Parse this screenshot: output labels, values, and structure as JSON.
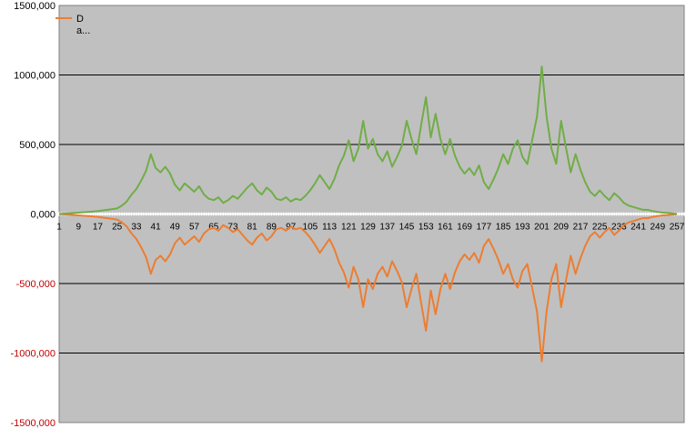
{
  "chart_data": {
    "type": "line",
    "title": "",
    "xlabel": "",
    "ylabel": "",
    "ylim": [
      -1500000,
      1500000
    ],
    "yticks": [
      {
        "value": 1500000,
        "label": "1500,000"
      },
      {
        "value": 1000000,
        "label": "1000,000"
      },
      {
        "value": 500000,
        "label": "500,000"
      },
      {
        "value": 0,
        "label": "0,000"
      },
      {
        "value": -500000,
        "label": "-500,000"
      },
      {
        "value": -1000000,
        "label": "-1000,000"
      },
      {
        "value": -1500000,
        "label": "-1500,000"
      }
    ],
    "xlim": [
      1,
      260
    ],
    "xticks": [
      "1",
      "9",
      "17",
      "25",
      "33",
      "41",
      "49",
      "57",
      "65",
      "73",
      "81",
      "89",
      "97",
      "105",
      "113",
      "121",
      "129",
      "137",
      "145",
      "153",
      "161",
      "169",
      "177",
      "185",
      "193",
      "201",
      "209",
      "217",
      "225",
      "233",
      "241",
      "249",
      "257"
    ],
    "grid": true,
    "legend": {
      "position": "top-left",
      "entries": [
        "D",
        "a..."
      ]
    },
    "colors": {
      "positive": "#70ad47",
      "negative": "#ed7d31",
      "baseline": "#ffffff",
      "plot_bg": "#c0c0c0",
      "negative_label": "#c00000"
    },
    "series": [
      {
        "name": "D",
        "x": [
          1,
          5,
          9,
          13,
          17,
          21,
          25,
          27,
          29,
          31,
          33,
          35,
          37,
          39,
          41,
          43,
          45,
          47,
          49,
          51,
          53,
          55,
          57,
          59,
          61,
          63,
          65,
          67,
          69,
          71,
          73,
          75,
          77,
          79,
          81,
          83,
          85,
          87,
          89,
          91,
          93,
          95,
          97,
          99,
          101,
          103,
          105,
          107,
          109,
          111,
          113,
          115,
          117,
          119,
          121,
          123,
          125,
          127,
          129,
          131,
          133,
          135,
          137,
          139,
          141,
          143,
          145,
          147,
          149,
          151,
          153,
          155,
          157,
          159,
          161,
          163,
          165,
          167,
          169,
          171,
          173,
          175,
          177,
          179,
          181,
          183,
          185,
          187,
          189,
          191,
          193,
          195,
          197,
          199,
          201,
          203,
          205,
          207,
          209,
          211,
          213,
          215,
          217,
          219,
          221,
          223,
          225,
          227,
          229,
          231,
          233,
          235,
          237,
          239,
          241,
          243,
          245,
          247,
          249,
          251,
          253,
          255,
          257
        ],
        "values": [
          0,
          -5000,
          -10000,
          -15000,
          -20000,
          -30000,
          -40000,
          -60000,
          -90000,
          -140000,
          -180000,
          -240000,
          -310000,
          -430000,
          -330000,
          -300000,
          -340000,
          -290000,
          -210000,
          -170000,
          -220000,
          -190000,
          -160000,
          -200000,
          -140000,
          -110000,
          -100000,
          -120000,
          -80000,
          -100000,
          -130000,
          -110000,
          -150000,
          -190000,
          -220000,
          -170000,
          -140000,
          -190000,
          -160000,
          -110000,
          -100000,
          -120000,
          -90000,
          -110000,
          -100000,
          -130000,
          -170000,
          -220000,
          -280000,
          -230000,
          -180000,
          -250000,
          -350000,
          -420000,
          -530000,
          -380000,
          -470000,
          -670000,
          -470000,
          -540000,
          -430000,
          -380000,
          -450000,
          -340000,
          -410000,
          -490000,
          -670000,
          -540000,
          -430000,
          -640000,
          -840000,
          -550000,
          -720000,
          -540000,
          -430000,
          -540000,
          -420000,
          -340000,
          -290000,
          -330000,
          -280000,
          -350000,
          -230000,
          -180000,
          -250000,
          -330000,
          -430000,
          -360000,
          -470000,
          -530000,
          -410000,
          -360000,
          -530000,
          -700000,
          -1060000,
          -700000,
          -470000,
          -360000,
          -670000,
          -480000,
          -300000,
          -430000,
          -320000,
          -230000,
          -160000,
          -130000,
          -170000,
          -130000,
          -100000,
          -150000,
          -120000,
          -80000,
          -60000,
          -50000,
          -40000,
          -30000,
          -30000,
          -20000,
          -15000,
          -10000,
          -8000,
          -5000,
          0
        ]
      },
      {
        "name": "a...",
        "x": [
          1,
          5,
          9,
          13,
          17,
          21,
          25,
          27,
          29,
          31,
          33,
          35,
          37,
          39,
          41,
          43,
          45,
          47,
          49,
          51,
          53,
          55,
          57,
          59,
          61,
          63,
          65,
          67,
          69,
          71,
          73,
          75,
          77,
          79,
          81,
          83,
          85,
          87,
          89,
          91,
          93,
          95,
          97,
          99,
          101,
          103,
          105,
          107,
          109,
          111,
          113,
          115,
          117,
          119,
          121,
          123,
          125,
          127,
          129,
          131,
          133,
          135,
          137,
          139,
          141,
          143,
          145,
          147,
          149,
          151,
          153,
          155,
          157,
          159,
          161,
          163,
          165,
          167,
          169,
          171,
          173,
          175,
          177,
          179,
          181,
          183,
          185,
          187,
          189,
          191,
          193,
          195,
          197,
          199,
          201,
          203,
          205,
          207,
          209,
          211,
          213,
          215,
          217,
          219,
          221,
          223,
          225,
          227,
          229,
          231,
          233,
          235,
          237,
          239,
          241,
          243,
          245,
          247,
          249,
          251,
          253,
          255,
          257
        ],
        "values": [
          0,
          5000,
          10000,
          15000,
          20000,
          30000,
          40000,
          60000,
          90000,
          140000,
          180000,
          240000,
          310000,
          430000,
          330000,
          300000,
          340000,
          290000,
          210000,
          170000,
          220000,
          190000,
          160000,
          200000,
          140000,
          110000,
          100000,
          120000,
          80000,
          100000,
          130000,
          110000,
          150000,
          190000,
          220000,
          170000,
          140000,
          190000,
          160000,
          110000,
          100000,
          120000,
          90000,
          110000,
          100000,
          130000,
          170000,
          220000,
          280000,
          230000,
          180000,
          250000,
          350000,
          420000,
          530000,
          380000,
          470000,
          670000,
          470000,
          540000,
          430000,
          380000,
          450000,
          340000,
          410000,
          490000,
          670000,
          540000,
          430000,
          640000,
          840000,
          550000,
          720000,
          540000,
          430000,
          540000,
          420000,
          340000,
          290000,
          330000,
          280000,
          350000,
          230000,
          180000,
          250000,
          330000,
          430000,
          360000,
          470000,
          530000,
          410000,
          360000,
          530000,
          700000,
          1060000,
          700000,
          470000,
          360000,
          670000,
          480000,
          300000,
          430000,
          320000,
          230000,
          160000,
          130000,
          170000,
          130000,
          100000,
          150000,
          120000,
          80000,
          60000,
          50000,
          40000,
          30000,
          30000,
          20000,
          15000,
          10000,
          8000,
          5000,
          0
        ]
      }
    ]
  }
}
